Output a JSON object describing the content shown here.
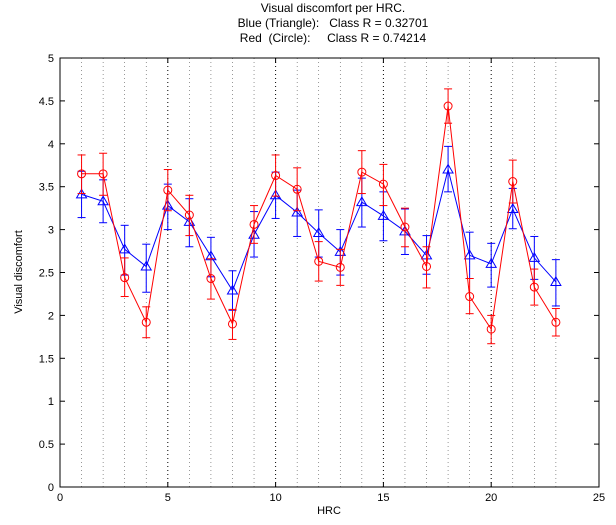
{
  "chart_data": {
    "type": "line",
    "title_lines": [
      "Visual discomfort per HRC.",
      "Blue (Triangle):   Class R = 0.32701",
      "Red  (Circle):     Class R = 0.74214"
    ],
    "xlabel": "HRC",
    "ylabel": "Visual discomfort",
    "xlim": [
      0,
      25
    ],
    "ylim": [
      0,
      5
    ],
    "xticks": [
      0,
      5,
      10,
      15,
      20,
      25
    ],
    "yticks": [
      0,
      0.5,
      1,
      1.5,
      2,
      2.5,
      3,
      3.5,
      4,
      4.5,
      5
    ],
    "grid": "vertical dotted lines at every HRC index",
    "x": [
      1,
      2,
      3,
      4,
      5,
      6,
      7,
      8,
      9,
      10,
      11,
      12,
      13,
      14,
      15,
      16,
      17,
      18,
      19,
      20,
      21,
      22,
      23
    ],
    "series": [
      {
        "marker": "triangle",
        "color": "#0000ff",
        "values": [
          3.41,
          3.33,
          2.77,
          2.57,
          3.28,
          3.09,
          2.69,
          2.29,
          2.94,
          3.4,
          3.2,
          2.96,
          2.74,
          3.32,
          3.16,
          2.98,
          2.7,
          3.7,
          2.7,
          2.6,
          3.24,
          2.67,
          2.39
        ],
        "err_low": [
          3.14,
          3.08,
          2.47,
          2.27,
          3.0,
          2.8,
          2.45,
          2.06,
          2.68,
          3.13,
          2.92,
          2.68,
          2.47,
          3.03,
          2.87,
          2.71,
          2.48,
          3.44,
          2.43,
          2.33,
          3.01,
          2.42,
          2.11
        ],
        "err_high": [
          3.68,
          3.58,
          3.05,
          2.83,
          3.53,
          3.36,
          2.91,
          2.52,
          3.21,
          3.67,
          3.46,
          3.23,
          3.0,
          3.6,
          3.44,
          3.24,
          2.93,
          3.97,
          2.97,
          2.84,
          3.48,
          2.92,
          2.65
        ]
      },
      {
        "marker": "circle",
        "color": "#ff0000",
        "values": [
          3.65,
          3.65,
          2.44,
          1.92,
          3.46,
          3.17,
          2.43,
          1.9,
          3.06,
          3.63,
          3.47,
          2.63,
          2.56,
          3.67,
          3.53,
          3.03,
          2.57,
          4.44,
          2.22,
          1.84,
          3.56,
          2.33,
          1.92
        ],
        "err_low": [
          3.42,
          3.4,
          2.22,
          1.74,
          3.22,
          2.93,
          2.19,
          1.72,
          2.84,
          3.39,
          3.22,
          2.4,
          2.35,
          3.42,
          3.28,
          2.8,
          2.32,
          4.24,
          2.02,
          1.67,
          3.31,
          2.12,
          1.76
        ],
        "err_high": [
          3.87,
          3.89,
          2.67,
          2.1,
          3.7,
          3.4,
          2.66,
          2.07,
          3.28,
          3.87,
          3.72,
          2.86,
          2.77,
          3.92,
          3.76,
          3.25,
          2.8,
          4.64,
          2.43,
          2.0,
          3.81,
          2.54,
          2.08
        ]
      }
    ]
  }
}
